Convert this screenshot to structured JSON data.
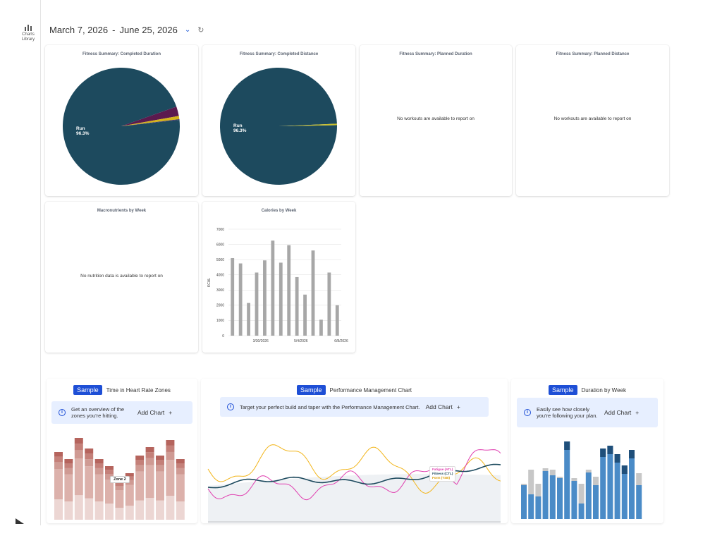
{
  "rail": {
    "label_line1": "Charts",
    "label_line2": "Library",
    "icon": "bar-chart-icon"
  },
  "header": {
    "start_date": "March 7, 2026",
    "separator": "-",
    "end_date": "June 25, 2026",
    "dropdown_icon": "chevron-down-icon",
    "refresh_icon": "refresh-icon"
  },
  "cards": {
    "completed_duration": {
      "title": "Fitness Summary: Completed Duration",
      "slice_label": "Run",
      "slice_value": "96.3%"
    },
    "completed_distance": {
      "title": "Fitness Summary: Completed Distance",
      "slice_label": "Run",
      "slice_value": "96.3%"
    },
    "planned_duration": {
      "title": "Fitness Summary: Planned Duration",
      "message": "No workouts are available to report on"
    },
    "planned_distance": {
      "title": "Fitness Summary: Planned Distance",
      "message": "No workouts are available to report on"
    },
    "macronutrients": {
      "title": "Macronutrients by Week",
      "message": "No nutrition data is available to report on"
    },
    "calories": {
      "title": "Calories by Week"
    }
  },
  "samples": {
    "hr_zones": {
      "badge": "Sample",
      "title": "Time in Heart Rate Zones",
      "info": "Get an overview of the zones you're hitting.",
      "add": "Add Chart",
      "plus": "+",
      "tooltip": "Zone 2"
    },
    "pmc": {
      "badge": "Sample",
      "title": "Performance Management Chart",
      "info": "Target your perfect build and taper with the Performance Management Chart.",
      "add": "Add Chart",
      "plus": "+",
      "legend": [
        "Fatigue (ATL)",
        "Fitness (CTL)",
        "Form (TSB)"
      ]
    },
    "duration": {
      "badge": "Sample",
      "title": "Duration by Week",
      "info": "Easily see how closely you're following your plan.",
      "add": "Add Chart",
      "plus": "+"
    }
  },
  "chart_data": [
    {
      "type": "pie",
      "title": "Fitness Summary: Completed Duration",
      "slices": [
        {
          "label": "Run",
          "value": 96.3,
          "color": "#1d4a5e"
        },
        {
          "label": "",
          "value": 2.6,
          "color": "#5b1a4e"
        },
        {
          "label": "",
          "value": 0.9,
          "color": "#d4b41a"
        },
        {
          "label": "",
          "value": 0.2,
          "color": "#3d2f6b"
        }
      ]
    },
    {
      "type": "pie",
      "title": "Fitness Summary: Completed Distance",
      "slices": [
        {
          "label": "Run",
          "value": 96.3,
          "color": "#1d4a5e"
        },
        {
          "label": "",
          "value": 0.4,
          "color": "#c9bf2a"
        }
      ]
    },
    {
      "type": "bar",
      "title": "Calories by Week",
      "ylabel": "KCAL",
      "ylim": [
        0,
        7000
      ],
      "yticks": [
        0,
        1000,
        2000,
        3000,
        4000,
        5000,
        6000,
        7000
      ],
      "xtick_labels": [
        "3/30/2026",
        "5/4/2026",
        "6/8/2026"
      ],
      "xtick_index": [
        4,
        9,
        14
      ],
      "values": [
        5100,
        4750,
        2150,
        4150,
        4950,
        6250,
        4800,
        5950,
        3850,
        2700,
        5600,
        1050,
        4150,
        2000
      ],
      "color": "#a7a7a7"
    }
  ],
  "colors": {
    "accent": "#1e4fd6",
    "info_bg": "#e7efff",
    "pie_main": "#1d4a5e",
    "fatigue": "#e040b0",
    "fitness": "#1d4a5e",
    "form": "#f2b51a"
  }
}
